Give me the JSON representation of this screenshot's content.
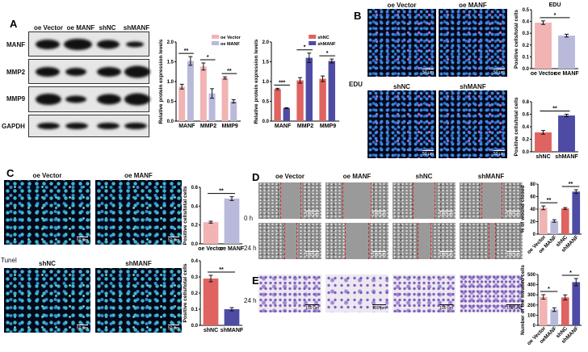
{
  "panels": {
    "A": "A",
    "B": "B",
    "C": "C",
    "D": "D",
    "E": "E"
  },
  "blot": {
    "columns": [
      "oe Vector",
      "oe MANF",
      "shNC",
      "shMANF"
    ],
    "rows": [
      "MANF",
      "MMP2",
      "MMP9",
      "GAPDH"
    ]
  },
  "edu": {
    "side_label": "EDU",
    "columns_top": [
      "oe Vector",
      "oe MANF"
    ],
    "columns_bottom": [
      "shNC",
      "shMANF"
    ],
    "scale_bar": "50 μm"
  },
  "tunel": {
    "side_label": "Tunel",
    "columns_top": [
      "oe Vector",
      "oe MANF"
    ],
    "columns_bottom": [
      "shNC",
      "shMANF"
    ],
    "scale_bar": "50 μm"
  },
  "wound": {
    "columns": [
      "oe Vector",
      "oe MANF",
      "shNC",
      "shMANF"
    ],
    "rows": [
      "0 h",
      "24 h"
    ],
    "scale_bar": "100 μm"
  },
  "invasion": {
    "rows": [
      "24 h"
    ],
    "scale_bar": "100 μm"
  },
  "colors": {
    "oe_vector": "#f2b3b3",
    "oe_manf": "#b9b9dc",
    "shnc": "#df6360",
    "shmanf": "#4d4ba3"
  },
  "chart_data": [
    {
      "type": "bar",
      "panel": "A",
      "ylabel": "Relative protein expression levels",
      "categories": [
        "MANF",
        "MMP2",
        "MMP9"
      ],
      "ylim": [
        0,
        2.0
      ],
      "yticks": [
        0.0,
        0.5,
        1.0,
        1.5,
        2.0
      ],
      "series": [
        {
          "name": "oe Vector",
          "color": "#f2b3b3",
          "values": [
            0.87,
            1.38,
            1.09
          ],
          "errors": [
            0.06,
            0.09,
            0.03
          ]
        },
        {
          "name": "oe MANF",
          "color": "#b9b9dc",
          "values": [
            1.52,
            0.7,
            0.5
          ],
          "errors": [
            0.11,
            0.12,
            0.04
          ]
        }
      ],
      "significance": [
        "**",
        "*",
        "**"
      ],
      "legend": "top-right"
    },
    {
      "type": "bar",
      "panel": "A",
      "ylabel": "Relative protein expression levels",
      "categories": [
        "MANF",
        "MMP2",
        "MMP9"
      ],
      "ylim": [
        0,
        2.0
      ],
      "yticks": [
        0.0,
        0.5,
        1.0,
        1.5,
        2.0
      ],
      "series": [
        {
          "name": "shNC",
          "color": "#df6360",
          "values": [
            0.81,
            1.03,
            1.07
          ],
          "errors": [
            0.02,
            0.07,
            0.07
          ]
        },
        {
          "name": "shMANF",
          "color": "#4d4ba3",
          "values": [
            0.33,
            1.6,
            1.52
          ],
          "errors": [
            0.01,
            0.12,
            0.05
          ]
        }
      ],
      "significance": [
        "***",
        "*",
        "*"
      ],
      "legend": "top-right"
    },
    {
      "type": "bar",
      "panel": "B",
      "title": "EDU",
      "ylabel": "Positive cells/total cells",
      "categories": [
        "oe Vector",
        "oe MANF"
      ],
      "ylim": [
        0,
        0.5
      ],
      "yticks": [
        0.0,
        0.1,
        0.2,
        0.3,
        0.4,
        0.5
      ],
      "values": [
        0.39,
        0.28
      ],
      "errors": [
        0.015,
        0.012
      ],
      "colors": [
        "#f2b3b3",
        "#b9b9dc"
      ],
      "significance": [
        {
          "pair": [
            0,
            1
          ],
          "label": "*"
        }
      ]
    },
    {
      "type": "bar",
      "panel": "B",
      "ylabel": "Positive cells/total cells",
      "categories": [
        "shNC",
        "shMANF"
      ],
      "ylim": [
        0,
        0.8
      ],
      "yticks": [
        0.0,
        0.2,
        0.4,
        0.6,
        0.8
      ],
      "values": [
        0.31,
        0.58
      ],
      "errors": [
        0.03,
        0.02
      ],
      "colors": [
        "#df6360",
        "#4d4ba3"
      ],
      "significance": [
        {
          "pair": [
            0,
            1
          ],
          "label": "**"
        }
      ]
    },
    {
      "type": "bar",
      "panel": "C",
      "ylabel": "Positive cells/total cells",
      "categories": [
        "oe Vector",
        "oe MANF"
      ],
      "ylim": [
        0,
        0.6
      ],
      "yticks": [
        0.0,
        0.2,
        0.4,
        0.6
      ],
      "values": [
        0.23,
        0.48
      ],
      "errors": [
        0.01,
        0.02
      ],
      "colors": [
        "#f2b3b3",
        "#b9b9dc"
      ],
      "significance": [
        {
          "pair": [
            0,
            1
          ],
          "label": "**"
        }
      ]
    },
    {
      "type": "bar",
      "panel": "C",
      "ylabel": "Positive cells/total cells",
      "categories": [
        "shNC",
        "shMANF"
      ],
      "ylim": [
        0,
        0.4
      ],
      "yticks": [
        0.0,
        0.1,
        0.2,
        0.3,
        0.4
      ],
      "values": [
        0.29,
        0.1
      ],
      "errors": [
        0.02,
        0.01
      ],
      "colors": [
        "#df6360",
        "#4d4ba3"
      ],
      "significance": [
        {
          "pair": [
            0,
            1
          ],
          "label": "**"
        }
      ]
    },
    {
      "type": "bar",
      "panel": "D",
      "ylabel": "% of wound closed",
      "categories": [
        "oe Vector",
        "oe MANF",
        "shNC",
        "shMANF"
      ],
      "rotate_labels": true,
      "ylim": [
        0,
        80
      ],
      "yticks": [
        0,
        20,
        40,
        60,
        80
      ],
      "values": [
        42,
        21,
        41,
        68
      ],
      "errors": [
        3,
        2,
        1.5,
        3
      ],
      "colors": [
        "#f2b3b3",
        "#b9b9dc",
        "#df6360",
        "#4d4ba3"
      ],
      "significance": [
        {
          "pair": [
            0,
            1
          ],
          "label": "**"
        },
        {
          "pair": [
            2,
            3
          ],
          "label": "**"
        }
      ]
    },
    {
      "type": "bar",
      "panel": "E",
      "ylabel": "Number of the invaded cells",
      "categories": [
        "oe Vector",
        "oeMANF",
        "shNC",
        "shMANF"
      ],
      "rotate_labels": true,
      "ylim": [
        0,
        500
      ],
      "yticks": [
        0,
        100,
        200,
        300,
        400,
        500
      ],
      "values": [
        280,
        155,
        275,
        425
      ],
      "errors": [
        22,
        18,
        25,
        35
      ],
      "colors": [
        "#f2b3b3",
        "#b9b9dc",
        "#df6360",
        "#4d4ba3"
      ],
      "significance": [
        {
          "pair": [
            0,
            1
          ],
          "label": "*"
        },
        {
          "pair": [
            2,
            3
          ],
          "label": "*"
        }
      ]
    }
  ]
}
